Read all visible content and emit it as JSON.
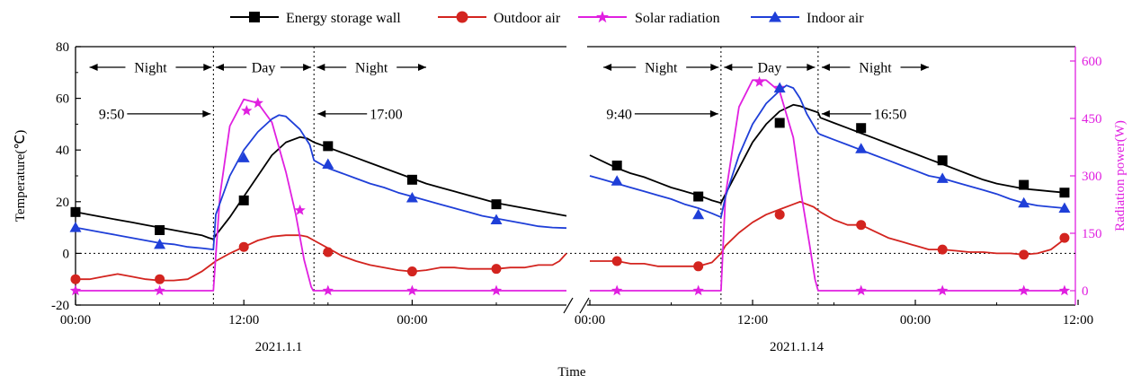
{
  "chart_data": {
    "type": "line",
    "xlabel": "Time",
    "ylabel": "Temperature(℃)",
    "y2label": "Radiation power(W)",
    "ylim": [
      -20,
      80
    ],
    "yticks": [
      -20,
      0,
      20,
      40,
      60,
      80
    ],
    "y2lim": [
      -37.5,
      637.5
    ],
    "y2ticks": [
      0,
      150,
      300,
      450,
      600
    ],
    "x_unit": "hours from 00:00 of the panel date",
    "legend_position": "top",
    "legend": [
      "Energy storage wall",
      "Outdoor air",
      "Solar radiation",
      "Indoor air"
    ],
    "colors": {
      "Energy storage wall": "#000000",
      "Outdoor air": "#d3241f",
      "Solar radiation": "#e020e0",
      "Indoor air": "#1f3fd8"
    },
    "marker_shapes": {
      "Energy storage wall": "square",
      "Outdoor air": "circle",
      "Solar radiation": "star",
      "Indoor air": "triangle"
    },
    "panels": [
      {
        "date_label": "2021.1.1",
        "xrange": [
          0,
          35
        ],
        "xticks": [
          0,
          12,
          24
        ],
        "xtick_labels": [
          "00:00",
          "12:00",
          "00:00"
        ],
        "day_start_h": 9.83,
        "day_end_h": 17.0,
        "series": [
          {
            "name": "Energy storage wall",
            "x": [
              0,
              1,
              2,
              3,
              4,
              5,
              6,
              7,
              8,
              9,
              9.5,
              9.83,
              10,
              11,
              12,
              13,
              14,
              15,
              16,
              16.5,
              17,
              18,
              19,
              20,
              21,
              22,
              23,
              24,
              25,
              26,
              27,
              28,
              29,
              30,
              31,
              32,
              33,
              34,
              35
            ],
            "y": [
              16,
              15,
              14,
              13,
              12,
              11,
              10,
              9,
              8,
              7,
              6,
              5.5,
              7,
              14,
              22,
              30,
              38,
              43,
              45,
              44.5,
              43,
              41,
              39,
              37,
              35,
              33,
              31,
              29,
              27,
              25.5,
              24,
              22.5,
              21,
              19.5,
              18.5,
              17.5,
              16.5,
              15.5,
              14.5
            ],
            "markers_x": [
              0,
              6,
              12,
              18,
              24,
              30
            ],
            "markers_y": [
              16,
              9,
              20.5,
              41.5,
              28.5,
              19
            ]
          },
          {
            "name": "Outdoor air",
            "x": [
              0,
              1,
              2,
              3,
              4,
              5,
              6,
              7,
              8,
              9,
              10,
              11,
              12,
              13,
              14,
              15,
              16,
              16.5,
              17,
              18,
              19,
              20,
              21,
              22,
              23,
              24,
              25,
              26,
              27,
              28,
              29,
              30,
              31,
              32,
              33,
              34,
              34.5,
              35
            ],
            "y": [
              -10,
              -10,
              -9,
              -8,
              -9,
              -10,
              -10.5,
              -10.5,
              -10,
              -7,
              -3,
              0,
              2.5,
              5,
              6.5,
              7,
              7,
              6.5,
              5,
              2,
              -1,
              -3,
              -4.5,
              -5.5,
              -6.5,
              -7,
              -6.5,
              -5.5,
              -5.5,
              -6,
              -6,
              -6,
              -5.5,
              -5.5,
              -4.5,
              -4.5,
              -3,
              0
            ],
            "markers_x": [
              0,
              6,
              12,
              18,
              24,
              30
            ],
            "markers_y": [
              -10,
              -10,
              2.5,
              0.5,
              -7,
              -6
            ]
          },
          {
            "name": "Solar radiation",
            "x": [
              0,
              9.7,
              9.83,
              10.3,
              11,
              12,
              13,
              14,
              15,
              15.7,
              16.3,
              16.8,
              16.95,
              17,
              18,
              24,
              30,
              35
            ],
            "y": [
              0,
              0,
              0,
              250,
              430,
              500,
              490,
              440,
              310,
              200,
              80,
              10,
              0,
              0,
              0,
              0,
              0,
              0
            ],
            "markers_x": [
              0,
              6,
              12.2,
              13,
              16,
              18,
              24,
              30
            ],
            "markers_y": [
              0,
              0,
              470,
              490,
              210,
              0,
              0,
              0
            ]
          },
          {
            "name": "Indoor air",
            "x": [
              0,
              1,
              2,
              3,
              4,
              5,
              6,
              7,
              8,
              9,
              9.83,
              10,
              11,
              12,
              13,
              14,
              14.5,
              15,
              16,
              16.7,
              17,
              18,
              19,
              20,
              21,
              22,
              23,
              24,
              25,
              26,
              27,
              28,
              29,
              30,
              31,
              32,
              33,
              34,
              35
            ],
            "y": [
              10,
              9,
              8,
              7,
              6,
              5,
              4,
              3.5,
              2.5,
              2,
              1.5,
              15,
              30,
              40,
              47,
              52,
              53.5,
              53,
              48,
              42,
              36,
              33,
              31,
              29,
              27,
              25.5,
              23.5,
              22,
              20.5,
              19,
              17.5,
              16,
              14.5,
              13.5,
              12.5,
              11.5,
              10.5,
              10,
              9.8
            ],
            "markers_x": [
              0,
              6,
              12,
              18,
              24,
              30
            ],
            "markers_y": [
              10,
              3.5,
              37,
              34.5,
              21.5,
              13
            ]
          }
        ],
        "annotations": [
          {
            "text": "Night",
            "x_from": 1,
            "x_to": 9.7
          },
          {
            "text": "Day",
            "x_from": 10,
            "x_to": 16.8
          },
          {
            "text": "Night",
            "x_from": 17.2,
            "x_to": 25
          },
          {
            "text": "9:50",
            "arrow_to_x": 9.83,
            "y": 54
          },
          {
            "text": "17:00",
            "arrow_to_x": 17.0,
            "y": 54
          }
        ]
      },
      {
        "date_label": "2021.1.14",
        "xrange": [
          -0.2,
          35.8
        ],
        "xticks": [
          0,
          12,
          24,
          36
        ],
        "xtick_labels": [
          "00:00",
          "12:00",
          "00:00",
          "12:00"
        ],
        "day_start_h": 9.67,
        "day_end_h": 16.83,
        "series": [
          {
            "name": "Energy storage wall",
            "x": [
              0,
              1,
              2,
              3,
              4,
              5,
              6,
              7,
              8,
              9,
              9.67,
              10,
              11,
              12,
              13,
              14,
              15,
              15.5,
              16,
              16.83,
              17,
              18,
              19,
              20,
              21,
              22,
              23,
              24,
              25,
              26,
              27,
              28,
              29,
              30,
              31,
              32,
              33,
              34,
              35
            ],
            "y": [
              38,
              35.5,
              33,
              31,
              29.5,
              27.5,
              25.5,
              24,
              22.5,
              20.5,
              19.5,
              23,
              33,
              43,
              50,
              55,
              57.5,
              57,
              56,
              54.5,
              52.5,
              50.5,
              48.5,
              46.5,
              44.5,
              42.5,
              40.5,
              38.5,
              36.5,
              34.5,
              32.5,
              30.5,
              28.5,
              27,
              26,
              25,
              24.5,
              24,
              23.5
            ],
            "markers_x": [
              2,
              8,
              14,
              20,
              26,
              32,
              35
            ],
            "markers_y": [
              34,
              22,
              50.5,
              48.5,
              36,
              26.5,
              23.5
            ]
          },
          {
            "name": "Outdoor air",
            "x": [
              0,
              1,
              2,
              3,
              4,
              5,
              6,
              7,
              8,
              9,
              9.67,
              10,
              11,
              12,
              13,
              14,
              15,
              15.5,
              16,
              16.5,
              17,
              18,
              19,
              20,
              21,
              22,
              23,
              24,
              25,
              26,
              27,
              28,
              29,
              30,
              31,
              32,
              33,
              34,
              35
            ],
            "y": [
              -3,
              -3,
              -3,
              -4,
              -4,
              -5,
              -5,
              -5,
              -5,
              -3.5,
              0,
              3,
              8,
              12,
              15,
              17,
              19,
              20,
              19,
              18,
              16,
              13,
              11,
              11,
              8.5,
              6,
              4.5,
              3,
              1.5,
              1.5,
              1,
              0.5,
              0.5,
              0,
              0,
              -0.5,
              0,
              1.5,
              5.5
            ],
            "markers_x": [
              2,
              8,
              14,
              20,
              26,
              32,
              35
            ],
            "markers_y": [
              -3,
              -5,
              15,
              11,
              1.5,
              -0.5,
              6
            ]
          },
          {
            "name": "Solar radiation",
            "x": [
              0,
              9.55,
              9.67,
              10,
              11,
              12,
              13,
              14,
              15,
              15.6,
              16.2,
              16.6,
              16.83,
              17,
              20,
              26,
              32,
              35
            ],
            "y": [
              0,
              0,
              0,
              250,
              480,
              550,
              550,
              520,
              400,
              250,
              120,
              30,
              0,
              0,
              0,
              0,
              0,
              0
            ],
            "markers_x": [
              2,
              8,
              12.5,
              14,
              20,
              26,
              32,
              35
            ],
            "markers_y": [
              0,
              0,
              545,
              530,
              0,
              0,
              0,
              0
            ]
          },
          {
            "name": "Indoor air",
            "x": [
              0,
              1,
              2,
              3,
              4,
              5,
              6,
              7,
              8,
              9,
              9.67,
              10,
              11,
              12,
              13,
              14,
              14.5,
              15,
              15.5,
              16,
              16.83,
              17,
              18,
              19,
              20,
              21,
              22,
              23,
              24,
              25,
              26,
              27,
              28,
              29,
              30,
              31,
              32,
              33,
              34,
              35
            ],
            "y": [
              30,
              28.5,
              27,
              25.5,
              24,
              22.5,
              21,
              19,
              17.5,
              15.5,
              14,
              22,
              38,
              50,
              58,
              63,
              65,
              64,
              60,
              54,
              46.5,
              46,
              44,
              42,
              40,
              38,
              36,
              34,
              32,
              30,
              29,
              27.5,
              26,
              24.5,
              23,
              21,
              19.5,
              18.5,
              18,
              17.5
            ],
            "markers_x": [
              2,
              8,
              14,
              20,
              26,
              32,
              35
            ],
            "markers_y": [
              28,
              15,
              64,
              40.5,
              29,
              19.5,
              17.5
            ]
          }
        ],
        "annotations": [
          {
            "text": "Night",
            "x_from": 1,
            "x_to": 9.5
          },
          {
            "text": "Day",
            "x_from": 9.9,
            "x_to": 16.6
          },
          {
            "text": "Night",
            "x_from": 17.1,
            "x_to": 25
          },
          {
            "text": "9:40",
            "arrow_to_x": 9.67,
            "y": 54
          },
          {
            "text": "16:50",
            "arrow_to_x": 16.83,
            "y": 54
          }
        ]
      }
    ]
  }
}
